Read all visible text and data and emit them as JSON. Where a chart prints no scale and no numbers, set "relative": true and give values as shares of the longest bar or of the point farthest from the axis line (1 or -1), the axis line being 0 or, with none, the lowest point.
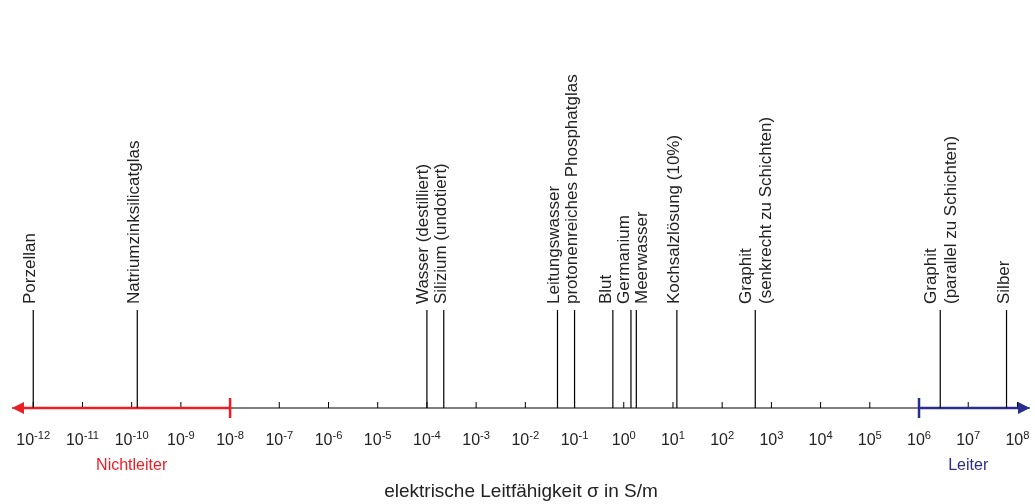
{
  "chart_data": {
    "type": "bar",
    "relative": true,
    "xlabel": "elektrische Leitfähigkeit σ in S/m",
    "log": "x",
    "xlim": [
      3.7e-13,
      180000000.0
    ],
    "xticks": [
      {
        "value": 1e-12,
        "label": "10$^{-12}$"
      },
      {
        "value": 1e-11,
        "label": "10$^{-11}$"
      },
      {
        "value": 1e-10,
        "label": "10$^{-10}$"
      },
      {
        "value": 1e-09,
        "label": "10$^{-9}$"
      },
      {
        "value": 1e-08,
        "label": "10$^{-8}$"
      },
      {
        "value": 1e-07,
        "label": "10$^{-7}$"
      },
      {
        "value": 1e-06,
        "label": "10$^{-6}$"
      },
      {
        "value": 1e-05,
        "label": "10$^{-5}$"
      },
      {
        "value": 0.0001,
        "label": "10$^{-4}$"
      },
      {
        "value": 0.001,
        "label": "10$^{-3}$"
      },
      {
        "value": 0.01,
        "label": "10$^{-2}$"
      },
      {
        "value": 0.1,
        "label": "10$^{-1}$"
      },
      {
        "value": 1,
        "label": "10$^{0}$"
      },
      {
        "value": 10,
        "label": "10$^{1}$"
      },
      {
        "value": 100,
        "label": "10$^{2}$"
      },
      {
        "value": 1000,
        "label": "10$^{3}$"
      },
      {
        "value": 10000.0,
        "label": "10$^{4}$"
      },
      {
        "value": 100000.0,
        "label": "10$^{5}$"
      },
      {
        "value": 1000000.0,
        "label": "10$^{6}$"
      },
      {
        "value": 10000000.0,
        "label": "10$^{7}$"
      },
      {
        "value": 100000000.0,
        "label": "10$^{8}$"
      }
    ],
    "series": [
      {
        "name": "Porzellan",
        "color": "#000000",
        "x": [
          1e-12
        ],
        "values": [
          1
        ]
      },
      {
        "name": "Natriumzinksilicatglas",
        "color": "#000000",
        "x": [
          1.3e-10
        ],
        "values": [
          1
        ]
      },
      {
        "name": "Wasser (destilliert)",
        "color": "#000000",
        "x": [
          0.0001
        ],
        "values": [
          1
        ]
      },
      {
        "name": "Silizium (undotiert)",
        "color": "#000000",
        "x": [
          0.00022
        ],
        "values": [
          1
        ]
      },
      {
        "name": "Leitungswasser",
        "color": "#000000",
        "x": [
          0.045
        ],
        "values": [
          1
        ]
      },
      {
        "name": "protonenreiches Phosphatglas",
        "color": "#000000",
        "x": [
          0.1
        ],
        "values": [
          1
        ]
      },
      {
        "name": "Blut",
        "color": "#000000",
        "x": [
          0.6
        ],
        "values": [
          1
        ]
      },
      {
        "name": "Germanium",
        "color": "#000000",
        "x": [
          1.4
        ],
        "values": [
          1
        ]
      },
      {
        "name": "Meerwasser",
        "color": "#000000",
        "x": [
          1.8
        ],
        "values": [
          1
        ]
      },
      {
        "name": "Kochsalzlösung (10%)",
        "color": "#000000",
        "x": [
          12
        ],
        "values": [
          1
        ]
      },
      {
        "name": "Graphit\n(senkrecht zu Schichten)",
        "color": "#000000",
        "x": [
          470
        ],
        "values": [
          1
        ]
      },
      {
        "name": "Graphit\n(parallel zu Schichten)",
        "color": "#000000",
        "x": [
          2700000.0
        ],
        "values": [
          1
        ]
      },
      {
        "name": "Silber",
        "color": "#000000",
        "x": [
          60000000.0
        ],
        "values": [
          1
        ]
      }
    ],
    "ref_lines": [
      {
        "axis": "x",
        "value": 1e-08,
        "label": "Nichtleiter",
        "color": "#ee1c24"
      },
      {
        "axis": "x",
        "value": 1000000.0,
        "label": "Leiter",
        "color": "#2b2d8e"
      }
    ]
  }
}
